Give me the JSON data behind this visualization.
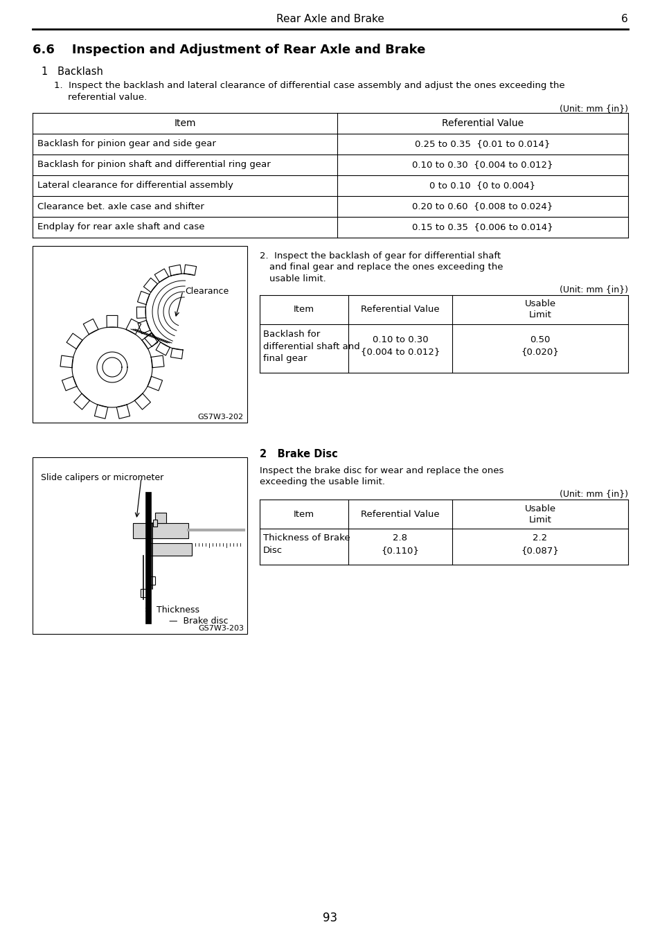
{
  "header_title": "Rear Axle and Brake",
  "header_number": "6",
  "section_title": "6.6    Inspection and Adjustment of Rear Axle and Brake",
  "subsection1": "1   Backlash",
  "para1_line1": "1.  Inspect the backlash and lateral clearance of differential case assembly and adjust the ones exceeding the",
  "para1_line2": "referential value.",
  "unit1": "(Unit: mm {in})",
  "table1_headers": [
    "Item",
    "Referential Value"
  ],
  "table1_rows": [
    [
      "Backlash for pinion gear and side gear",
      "0.25 to 0.35  {0.01 to 0.014}"
    ],
    [
      "Backlash for pinion shaft and differential ring gear",
      "0.10 to 0.30  {0.004 to 0.012}"
    ],
    [
      "Lateral clearance for differential assembly",
      "0 to 0.10  {0 to 0.004}"
    ],
    [
      "Clearance bet. axle case and shifter",
      "0.20 to 0.60  {0.008 to 0.024}"
    ],
    [
      "Endplay for rear axle shaft and case",
      "0.15 to 0.35  {0.006 to 0.014}"
    ]
  ],
  "fig1_label": "GS7W3-202",
  "clearance_label": "Clearance",
  "para2_line1": "2.  Inspect the backlash of gear for differential shaft",
  "para2_line2": "and final gear and replace the ones exceeding the",
  "para2_line3": "usable limit.",
  "unit2": "(Unit: mm {in})",
  "table2_r1c1_1": "Backlash for",
  "table2_r1c1_2": "differential shaft and",
  "table2_r1c1_3": "final gear",
  "table2_r1c2_1": "0.10 to 0.30",
  "table2_r1c2_2": "{0.004 to 0.012}",
  "table2_r1c3_1": "0.50",
  "table2_r1c3_2": "{0.020}",
  "subsection2": "2   Brake Disc",
  "para3_line1": "Inspect the brake disc for wear and replace the ones",
  "para3_line2": "exceeding the usable limit.",
  "unit3": "(Unit: mm {in})",
  "table3_r1c1_1": "Thickness of Brake",
  "table3_r1c1_2": "Disc",
  "table3_r1c2_1": "2.8",
  "table3_r1c2_2": "{0.110}",
  "table3_r1c3_1": "2.2",
  "table3_r1c3_2": "{0.087}",
  "slide_label": "Slide calipers or micrometer",
  "thickness_label": "Thickness",
  "brake_disc_label": "Brake disc",
  "fig2_label": "GS7W3-203",
  "page_number": "93",
  "bg_color": "#ffffff"
}
